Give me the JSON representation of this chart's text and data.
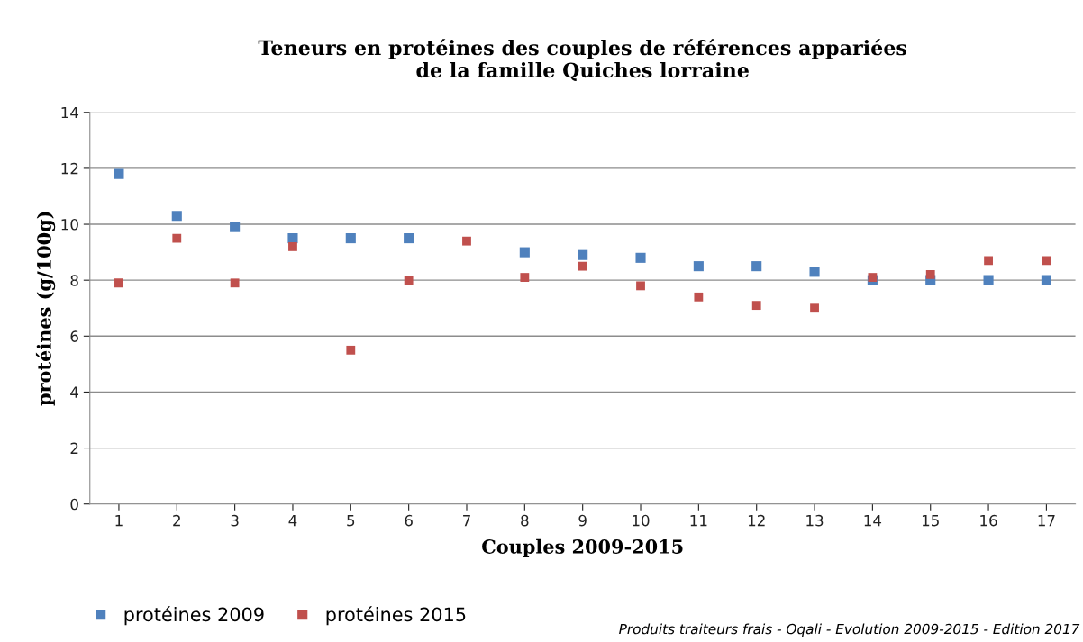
{
  "chart_data": {
    "type": "scatter",
    "title": "Teneurs en protéines des couples de références appariées\nde la famille Quiches lorraine",
    "xlabel": "Couples 2009-2015",
    "ylabel": "protéines (g/100g)",
    "categories": [
      "1",
      "2",
      "3",
      "4",
      "5",
      "6",
      "7",
      "8",
      "9",
      "10",
      "11",
      "12",
      "13",
      "14",
      "15",
      "16",
      "17"
    ],
    "series": [
      {
        "name": "protéines 2009",
        "color": "#4f81bd",
        "values": [
          11.8,
          10.3,
          9.9,
          9.5,
          9.5,
          9.5,
          null,
          9.0,
          8.9,
          8.8,
          8.5,
          8.5,
          8.3,
          8.0,
          8.0,
          8.0,
          8.0
        ]
      },
      {
        "name": "protéines 2015",
        "color": "#c0504d",
        "values": [
          7.9,
          9.5,
          7.9,
          9.2,
          5.5,
          8.0,
          9.4,
          8.1,
          8.5,
          7.8,
          7.4,
          7.1,
          7.0,
          8.1,
          8.2,
          8.7,
          8.7
        ]
      }
    ],
    "ylim": [
      0,
      14
    ],
    "yticks": [
      0,
      2,
      4,
      6,
      8,
      10,
      12,
      14
    ],
    "grid": "y",
    "legend": "bottom left",
    "marker": "square",
    "annotations": [
      "Produits traiteurs frais - Oqali - Evolution 2009-2015 - Edition 2017"
    ]
  }
}
